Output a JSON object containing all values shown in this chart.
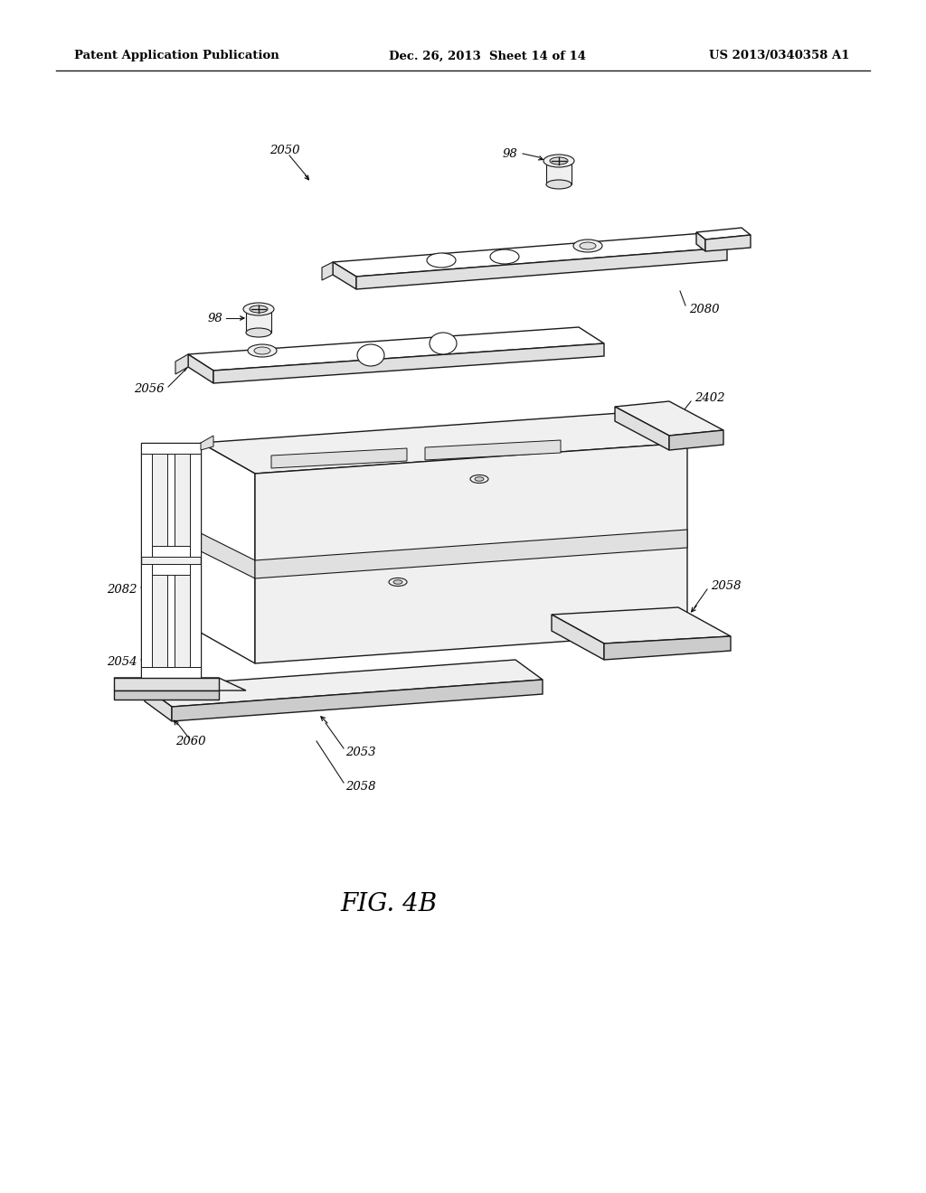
{
  "background_color": "#ffffff",
  "header_left": "Patent Application Publication",
  "header_mid": "Dec. 26, 2013  Sheet 14 of 14",
  "header_right": "US 2013/0340358 A1",
  "figure_label": "FIG. 4B",
  "line_color": "#1a1a1a",
  "face_white": "#ffffff",
  "face_light": "#f0f0f0",
  "face_mid": "#e0e0e0",
  "face_dark": "#cccccc"
}
